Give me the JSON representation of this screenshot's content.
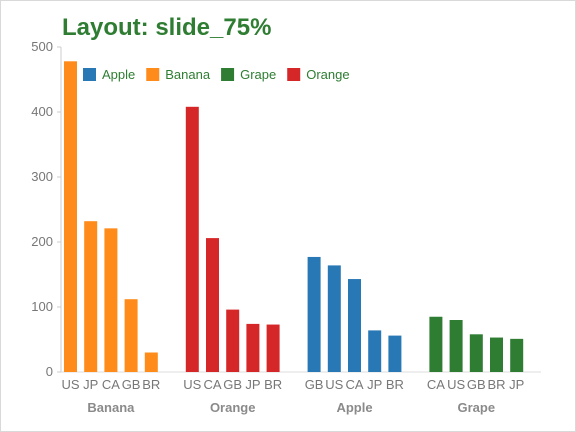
{
  "title": "Layout: slide_75%",
  "legend": [
    {
      "name": "Apple",
      "color": "#2878b5"
    },
    {
      "name": "Banana",
      "color": "#ff8c1a"
    },
    {
      "name": "Grape",
      "color": "#2e7d32"
    },
    {
      "name": "Orange",
      "color": "#d62728"
    }
  ],
  "chart_data": {
    "type": "bar",
    "title": "Layout: slide_75%",
    "ylim": [
      0,
      500
    ],
    "yticks": [
      0,
      100,
      200,
      300,
      400,
      500
    ],
    "legend_position": "top-left",
    "grid": false,
    "groups": [
      {
        "name": "Banana",
        "color": "#ff8c1a",
        "categories": [
          "US",
          "JP",
          "CA",
          "GB",
          "BR"
        ],
        "values": [
          478,
          232,
          221,
          112,
          30
        ]
      },
      {
        "name": "Orange",
        "color": "#d62728",
        "categories": [
          "US",
          "CA",
          "GB",
          "JP",
          "BR"
        ],
        "values": [
          408,
          206,
          96,
          74,
          73
        ]
      },
      {
        "name": "Apple",
        "color": "#2878b5",
        "categories": [
          "GB",
          "US",
          "CA",
          "JP",
          "BR"
        ],
        "values": [
          177,
          164,
          143,
          64,
          56
        ]
      },
      {
        "name": "Grape",
        "color": "#2e7d32",
        "categories": [
          "CA",
          "US",
          "GB",
          "BR",
          "JP"
        ],
        "values": [
          85,
          80,
          58,
          53,
          51
        ]
      }
    ]
  }
}
